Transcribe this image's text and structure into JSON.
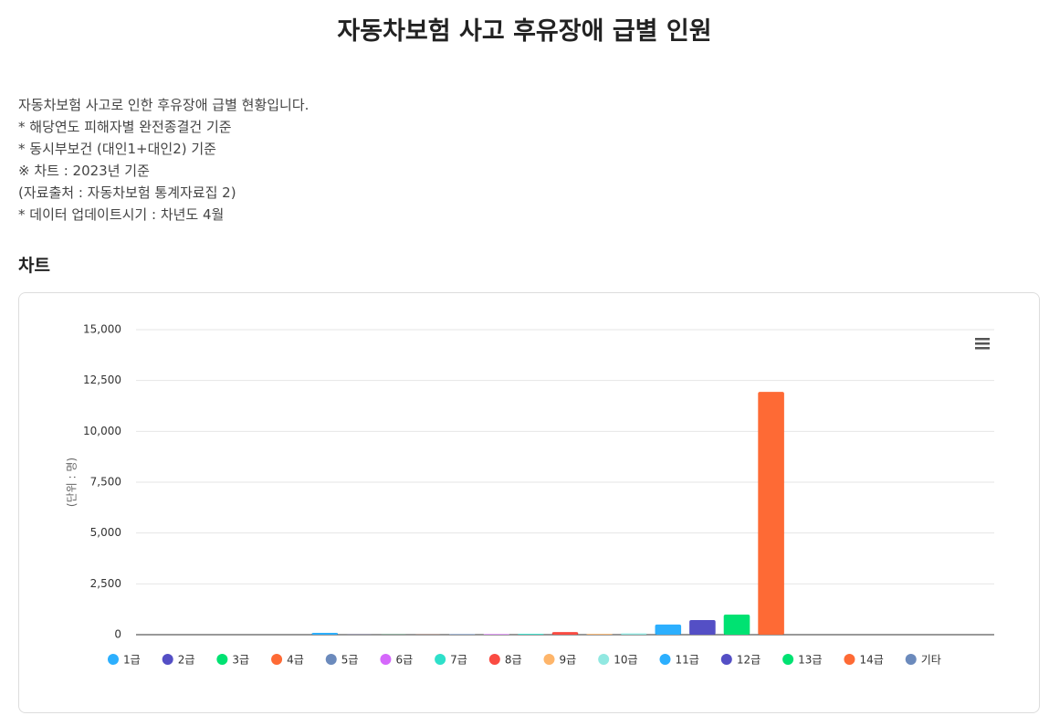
{
  "header": {
    "title": "자동차보험 사고 후유장애 급별 인원"
  },
  "description": [
    "자동차보험 사고로 인한 후유장애 급별 현황입니다.",
    "* 해당연도 피해자별 완전종결건 기준",
    "* 동시부보건 (대인1+대인2) 기준",
    "※ 차트 : 2023년 기준",
    "(자료출처 : 자동차보험 통계자료집 2)",
    "* 데이터 업데이트시기 : 차년도 4월"
  ],
  "section_title": "차트",
  "chart_data": {
    "type": "bar",
    "y_label": "(단위 : 명)",
    "categories": [
      null
    ],
    "series": [
      {
        "name": "1급",
        "color": "#2caffe",
        "values": [
          90
        ]
      },
      {
        "name": "2급",
        "color": "#544fc5",
        "values": [
          5
        ]
      },
      {
        "name": "3급",
        "color": "#00e272",
        "values": [
          5
        ]
      },
      {
        "name": "4급",
        "color": "#fe6a35",
        "values": [
          5
        ]
      },
      {
        "name": "5급",
        "color": "#6b8abc",
        "values": [
          30
        ]
      },
      {
        "name": "6급",
        "color": "#d568fb",
        "values": [
          30
        ]
      },
      {
        "name": "7급",
        "color": "#2ee0ca",
        "values": [
          40
        ]
      },
      {
        "name": "8급",
        "color": "#fa4b42",
        "values": [
          130
        ]
      },
      {
        "name": "9급",
        "color": "#feb56a",
        "values": [
          40
        ]
      },
      {
        "name": "10급",
        "color": "#91e8e1",
        "values": [
          60
        ]
      },
      {
        "name": "11급",
        "color": "#2caffe",
        "values": [
          500
        ]
      },
      {
        "name": "12급",
        "color": "#544fc5",
        "values": [
          720
        ]
      },
      {
        "name": "13급",
        "color": "#00e272",
        "values": [
          990
        ]
      },
      {
        "name": "14급",
        "color": "#fe6a35",
        "values": [
          11940
        ]
      },
      {
        "name": "기타",
        "color": "#6b8abc",
        "values": [
          0
        ]
      }
    ],
    "ylim": [
      0,
      15000
    ],
    "yticks": [
      0,
      {
        "value": 2500,
        "label": "2,500"
      },
      {
        "value": 5000,
        "label": "5,000"
      },
      {
        "value": 7500,
        "label": "7,500"
      },
      {
        "value": 10000,
        "label": "10,000"
      },
      {
        "value": 12500,
        "label": "12,500"
      },
      {
        "value": 15000,
        "label": "15,000"
      }
    ],
    "grid": true,
    "legend": "bottom"
  }
}
